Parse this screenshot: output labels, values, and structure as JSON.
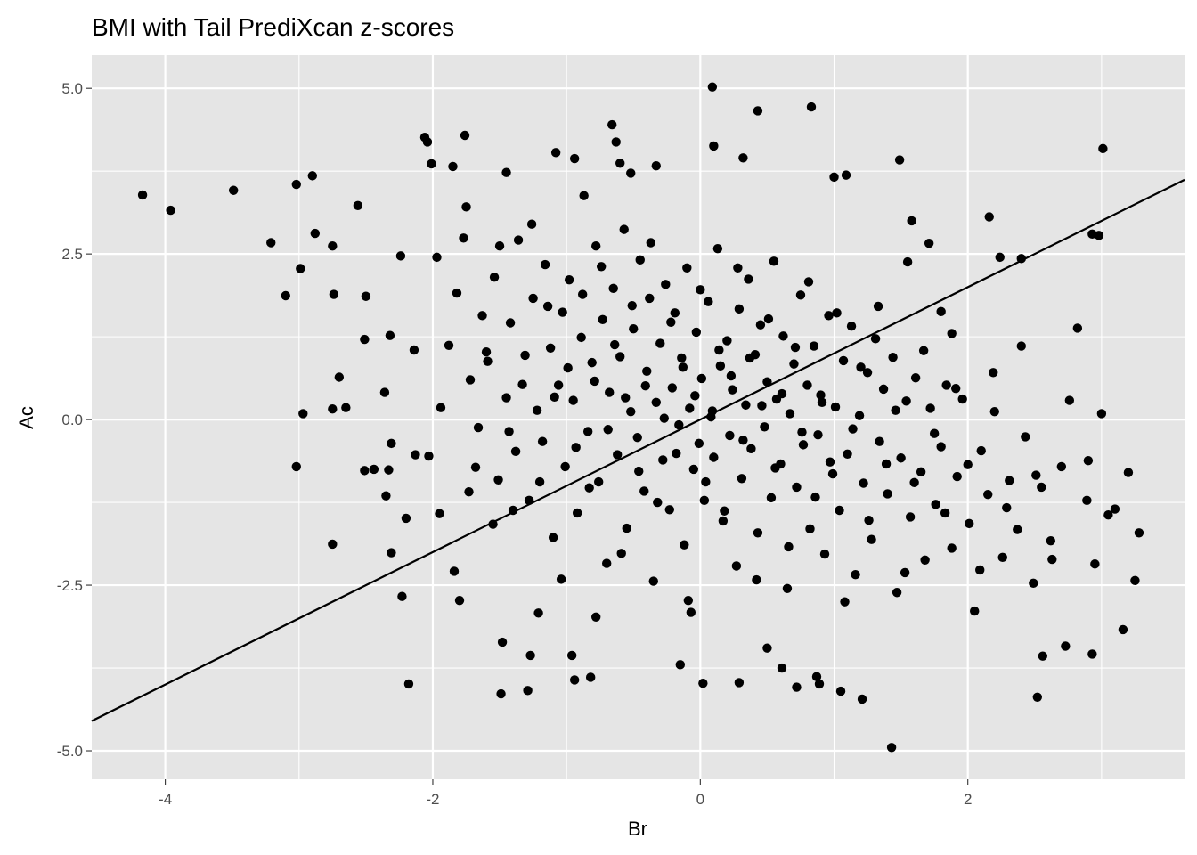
{
  "chart_data": {
    "type": "scatter",
    "title": "BMI with Tail PrediXcan z-scores",
    "xlabel": "Br",
    "ylabel": "Ac",
    "xlim": [
      -4.55,
      3.62
    ],
    "ylim": [
      -5.43,
      5.5
    ],
    "x_ticks": [
      -4,
      -2,
      0,
      2
    ],
    "x_tick_labels": [
      "-4",
      "-2",
      "0",
      "2"
    ],
    "y_ticks": [
      -5,
      -2.5,
      0,
      2.5,
      5
    ],
    "y_tick_labels": [
      "-5.0",
      "-2.5",
      "0.0",
      "2.5",
      "5.0"
    ],
    "grid": true,
    "panel_background": "#e5e5e5",
    "grid_color": "#ffffff",
    "point_color": "#000000",
    "line_color": "#000000",
    "reference_line": {
      "slope": 1,
      "intercept": 0
    },
    "points": [
      [
        -4.17,
        3.39
      ],
      [
        -3.96,
        3.16
      ],
      [
        -3.49,
        3.46
      ],
      [
        -3.21,
        2.67
      ],
      [
        -3.1,
        1.87
      ],
      [
        -3.02,
        3.55
      ],
      [
        -2.99,
        2.28
      ],
      [
        -2.9,
        3.68
      ],
      [
        -2.88,
        2.81
      ],
      [
        -2.97,
        0.09
      ],
      [
        -3.02,
        -0.71
      ],
      [
        -2.75,
        2.62
      ],
      [
        -2.74,
        1.89
      ],
      [
        -2.7,
        0.64
      ],
      [
        -2.75,
        0.16
      ],
      [
        -2.65,
        0.18
      ],
      [
        -2.75,
        -1.88
      ],
      [
        -2.56,
        3.23
      ],
      [
        -2.5,
        1.86
      ],
      [
        -2.51,
        1.21
      ],
      [
        -2.51,
        -0.77
      ],
      [
        -2.36,
        0.41
      ],
      [
        -2.32,
        1.27
      ],
      [
        -2.31,
        -0.36
      ],
      [
        -2.35,
        -1.15
      ],
      [
        -2.33,
        -0.76
      ],
      [
        -2.31,
        -2.01
      ],
      [
        -2.24,
        2.47
      ],
      [
        -2.23,
        -2.67
      ],
      [
        -2.18,
        -3.99
      ],
      [
        -2.14,
        1.05
      ],
      [
        -2.13,
        -0.53
      ],
      [
        -2.06,
        4.26
      ],
      [
        -2.04,
        4.19
      ],
      [
        -2.01,
        3.86
      ],
      [
        -1.95,
        -1.42
      ],
      [
        -1.85,
        3.82
      ],
      [
        -1.84,
        -2.29
      ],
      [
        -1.8,
        -2.73
      ],
      [
        -1.76,
        4.29
      ],
      [
        -1.75,
        3.21
      ],
      [
        -1.68,
        -0.72
      ],
      [
        -1.63,
        1.57
      ],
      [
        -1.55,
        -1.58
      ],
      [
        -1.48,
        -3.36
      ],
      [
        -1.49,
        -4.14
      ],
      [
        -1.45,
        3.73
      ],
      [
        -1.4,
        -1.37
      ],
      [
        -1.29,
        -4.09
      ],
      [
        -1.27,
        -3.56
      ],
      [
        -1.21,
        -2.92
      ],
      [
        -1.08,
        4.03
      ],
      [
        -0.94,
        3.94
      ],
      [
        -0.96,
        -3.56
      ],
      [
        -0.94,
        -3.93
      ],
      [
        -0.82,
        -3.89
      ],
      [
        -0.78,
        -2.98
      ],
      [
        -0.66,
        4.45
      ],
      [
        -0.63,
        4.19
      ],
      [
        -0.6,
        3.87
      ],
      [
        -0.52,
        3.72
      ],
      [
        -0.33,
        3.83
      ],
      [
        -0.15,
        -3.7
      ],
      [
        -0.07,
        -2.91
      ],
      [
        0.02,
        -3.98
      ],
      [
        0.09,
        5.02
      ],
      [
        0.1,
        4.13
      ],
      [
        0.32,
        3.95
      ],
      [
        0.43,
        4.66
      ],
      [
        0.29,
        -3.97
      ],
      [
        0.5,
        -3.45
      ],
      [
        0.61,
        -3.75
      ],
      [
        0.72,
        -4.04
      ],
      [
        0.83,
        4.72
      ],
      [
        0.87,
        -3.88
      ],
      [
        0.89,
        -3.99
      ],
      [
        1.0,
        3.66
      ],
      [
        1.05,
        -4.1
      ],
      [
        1.09,
        3.69
      ],
      [
        1.21,
        -4.22
      ],
      [
        1.43,
        -4.95
      ],
      [
        1.49,
        3.92
      ],
      [
        1.55,
        2.38
      ],
      [
        1.58,
        3.0
      ],
      [
        1.71,
        2.66
      ],
      [
        1.8,
        1.63
      ],
      [
        1.88,
        1.3
      ],
      [
        2.16,
        3.06
      ],
      [
        2.24,
        2.45
      ],
      [
        2.4,
        2.43
      ],
      [
        2.52,
        -4.19
      ],
      [
        2.56,
        -3.57
      ],
      [
        2.73,
        -3.42
      ],
      [
        2.82,
        1.38
      ],
      [
        2.93,
        2.8
      ],
      [
        2.98,
        2.78
      ],
      [
        3.01,
        4.09
      ],
      [
        3.0,
        0.09
      ],
      [
        2.9,
        -0.62
      ],
      [
        2.93,
        -3.54
      ],
      [
        2.95,
        -2.18
      ],
      [
        3.05,
        -1.44
      ],
      [
        3.1,
        -1.35
      ],
      [
        3.2,
        -0.8
      ],
      [
        3.16,
        -3.17
      ],
      [
        3.25,
        -2.43
      ],
      [
        3.28,
        -1.71
      ],
      [
        -2.44,
        -0.75
      ],
      [
        -2.2,
        -1.49
      ],
      [
        -2.03,
        -0.55
      ],
      [
        -1.94,
        0.18
      ],
      [
        -1.88,
        1.12
      ],
      [
        -1.82,
        1.91
      ],
      [
        -1.77,
        2.74
      ],
      [
        -1.72,
        0.6
      ],
      [
        -1.66,
        -0.12
      ],
      [
        -1.59,
        0.88
      ],
      [
        -1.54,
        2.15
      ],
      [
        -1.51,
        -0.91
      ],
      [
        -1.45,
        0.33
      ],
      [
        -1.42,
        1.46
      ],
      [
        -1.38,
        -0.48
      ],
      [
        -1.36,
        2.71
      ],
      [
        -1.31,
        0.97
      ],
      [
        -1.28,
        -1.22
      ],
      [
        -1.25,
        1.83
      ],
      [
        -1.22,
        0.14
      ],
      [
        -1.18,
        -0.33
      ],
      [
        -1.16,
        2.34
      ],
      [
        -1.12,
        1.08
      ],
      [
        -1.1,
        -1.78
      ],
      [
        -1.06,
        0.52
      ],
      [
        -1.03,
        1.62
      ],
      [
        -1.01,
        -0.71
      ],
      [
        -0.98,
        2.11
      ],
      [
        -0.95,
        0.29
      ],
      [
        -0.92,
        -1.41
      ],
      [
        -0.89,
        1.24
      ],
      [
        -0.87,
        3.38
      ],
      [
        -0.84,
        -0.18
      ],
      [
        -0.81,
        0.86
      ],
      [
        -0.78,
        2.62
      ],
      [
        -0.76,
        -0.94
      ],
      [
        -0.73,
        1.51
      ],
      [
        -0.7,
        -2.17
      ],
      [
        -0.68,
        0.41
      ],
      [
        -0.65,
        1.98
      ],
      [
        -0.62,
        -0.53
      ],
      [
        -0.6,
        0.95
      ],
      [
        -0.57,
        2.87
      ],
      [
        -0.55,
        -1.64
      ],
      [
        -0.52,
        0.12
      ],
      [
        -0.5,
        1.37
      ],
      [
        -0.47,
        -0.27
      ],
      [
        -0.45,
        2.41
      ],
      [
        -0.42,
        -1.08
      ],
      [
        -0.4,
        0.73
      ],
      [
        -0.38,
        1.83
      ],
      [
        -0.35,
        -2.44
      ],
      [
        -0.33,
        0.26
      ],
      [
        -0.3,
        1.15
      ],
      [
        -0.28,
        -0.61
      ],
      [
        -0.26,
        2.04
      ],
      [
        -0.23,
        -1.36
      ],
      [
        -0.21,
        0.48
      ],
      [
        -0.19,
        1.61
      ],
      [
        -0.16,
        -0.08
      ],
      [
        -0.14,
        0.93
      ],
      [
        -0.12,
        -1.89
      ],
      [
        -0.1,
        2.29
      ],
      [
        -0.08,
        0.17
      ],
      [
        -0.05,
        -0.75
      ],
      [
        -0.03,
        1.32
      ],
      [
        -0.01,
        -0.36
      ],
      [
        0.01,
        0.62
      ],
      [
        0.03,
        -1.22
      ],
      [
        0.06,
        1.78
      ],
      [
        0.08,
        0.04
      ],
      [
        0.1,
        -0.57
      ],
      [
        0.13,
        2.58
      ],
      [
        0.15,
        0.81
      ],
      [
        0.17,
        -1.53
      ],
      [
        0.2,
        1.19
      ],
      [
        0.22,
        -0.24
      ],
      [
        0.24,
        0.45
      ],
      [
        0.27,
        -2.21
      ],
      [
        0.29,
        1.67
      ],
      [
        0.31,
        -0.89
      ],
      [
        0.34,
        0.22
      ],
      [
        0.36,
        2.12
      ],
      [
        0.38,
        -0.44
      ],
      [
        0.41,
        0.98
      ],
      [
        0.43,
        -1.71
      ],
      [
        0.45,
        1.43
      ],
      [
        0.48,
        -0.11
      ],
      [
        0.5,
        0.57
      ],
      [
        0.53,
        -1.18
      ],
      [
        0.55,
        2.39
      ],
      [
        0.57,
        0.31
      ],
      [
        0.6,
        -0.67
      ],
      [
        0.62,
        1.26
      ],
      [
        0.65,
        -2.55
      ],
      [
        0.67,
        0.09
      ],
      [
        0.7,
        0.84
      ],
      [
        0.72,
        -1.02
      ],
      [
        0.75,
        1.88
      ],
      [
        0.77,
        -0.38
      ],
      [
        0.8,
        0.52
      ],
      [
        0.82,
        -1.65
      ],
      [
        0.85,
        1.11
      ],
      [
        0.88,
        -0.23
      ],
      [
        0.9,
        0.37
      ],
      [
        0.93,
        -2.03
      ],
      [
        0.96,
        1.57
      ],
      [
        0.99,
        -0.82
      ],
      [
        1.01,
        0.19
      ],
      [
        1.04,
        -1.37
      ],
      [
        1.07,
        0.89
      ],
      [
        1.1,
        -0.52
      ],
      [
        1.13,
        1.41
      ],
      [
        1.16,
        -2.34
      ],
      [
        1.19,
        0.06
      ],
      [
        1.22,
        -0.96
      ],
      [
        1.25,
        0.71
      ],
      [
        1.28,
        -1.81
      ],
      [
        1.31,
        1.22
      ],
      [
        1.34,
        -0.33
      ],
      [
        1.37,
        0.46
      ],
      [
        1.4,
        -1.12
      ],
      [
        1.44,
        0.94
      ],
      [
        1.47,
        -2.61
      ],
      [
        1.5,
        -0.58
      ],
      [
        1.54,
        0.28
      ],
      [
        1.57,
        -1.47
      ],
      [
        1.61,
        0.63
      ],
      [
        1.65,
        -0.79
      ],
      [
        1.68,
        -2.12
      ],
      [
        1.72,
        0.17
      ],
      [
        1.76,
        -1.28
      ],
      [
        1.8,
        -0.41
      ],
      [
        1.84,
        0.52
      ],
      [
        1.88,
        -1.94
      ],
      [
        1.92,
        -0.86
      ],
      [
        1.96,
        0.31
      ],
      [
        2.01,
        -1.57
      ],
      [
        2.05,
        -2.89
      ],
      [
        2.1,
        -0.47
      ],
      [
        2.15,
        -1.13
      ],
      [
        2.2,
        0.12
      ],
      [
        2.26,
        -2.08
      ],
      [
        2.31,
        -0.92
      ],
      [
        2.37,
        -1.66
      ],
      [
        2.43,
        -0.26
      ],
      [
        2.49,
        -2.47
      ],
      [
        2.55,
        -1.02
      ],
      [
        2.62,
        -1.83
      ],
      [
        2.7,
        -0.71
      ],
      [
        -1.97,
        2.45
      ],
      [
        -1.73,
        -1.09
      ],
      [
        -1.6,
        1.02
      ],
      [
        -1.5,
        2.62
      ],
      [
        -1.43,
        -0.18
      ],
      [
        -1.33,
        0.53
      ],
      [
        -1.26,
        2.95
      ],
      [
        -1.2,
        -0.94
      ],
      [
        -1.14,
        1.71
      ],
      [
        -1.09,
        0.34
      ],
      [
        -1.04,
        -2.41
      ],
      [
        -0.99,
        0.78
      ],
      [
        -0.93,
        -0.42
      ],
      [
        -0.88,
        1.89
      ],
      [
        -0.83,
        -1.03
      ],
      [
        -0.79,
        0.58
      ],
      [
        -0.74,
        2.31
      ],
      [
        -0.69,
        -0.15
      ],
      [
        -0.64,
        1.13
      ],
      [
        -0.59,
        -2.02
      ],
      [
        -0.56,
        0.33
      ],
      [
        -0.51,
        1.72
      ],
      [
        -0.46,
        -0.78
      ],
      [
        -0.41,
        0.51
      ],
      [
        -0.37,
        2.67
      ],
      [
        -0.32,
        -1.25
      ],
      [
        -0.27,
        0.02
      ],
      [
        -0.22,
        1.47
      ],
      [
        -0.18,
        -0.51
      ],
      [
        -0.13,
        0.79
      ],
      [
        -0.09,
        -2.73
      ],
      [
        -0.04,
        0.36
      ],
      [
        0.0,
        1.96
      ],
      [
        0.04,
        -0.94
      ],
      [
        0.09,
        0.13
      ],
      [
        0.14,
        1.05
      ],
      [
        0.18,
        -1.38
      ],
      [
        0.23,
        0.66
      ],
      [
        0.28,
        2.29
      ],
      [
        0.32,
        -0.31
      ],
      [
        0.37,
        0.93
      ],
      [
        0.42,
        -2.42
      ],
      [
        0.46,
        0.21
      ],
      [
        0.51,
        1.52
      ],
      [
        0.56,
        -0.73
      ],
      [
        0.61,
        0.39
      ],
      [
        0.66,
        -1.92
      ],
      [
        0.71,
        1.09
      ],
      [
        0.76,
        -0.19
      ],
      [
        0.81,
        2.08
      ],
      [
        0.86,
        -1.17
      ],
      [
        0.91,
        0.26
      ],
      [
        0.97,
        -0.64
      ],
      [
        1.02,
        1.61
      ],
      [
        1.08,
        -2.75
      ],
      [
        1.14,
        -0.14
      ],
      [
        1.2,
        0.79
      ],
      [
        1.26,
        -1.52
      ],
      [
        1.33,
        1.71
      ],
      [
        1.39,
        -0.67
      ],
      [
        1.46,
        0.14
      ],
      [
        1.53,
        -2.31
      ],
      [
        1.6,
        -0.95
      ],
      [
        1.67,
        1.04
      ],
      [
        1.75,
        -0.21
      ],
      [
        1.83,
        -1.41
      ],
      [
        1.91,
        0.47
      ],
      [
        2.0,
        -0.68
      ],
      [
        2.09,
        -2.27
      ],
      [
        2.19,
        0.71
      ],
      [
        2.29,
        -1.33
      ],
      [
        2.4,
        1.11
      ],
      [
        2.51,
        -0.84
      ],
      [
        2.63,
        -2.11
      ],
      [
        2.76,
        0.29
      ],
      [
        2.89,
        -1.22
      ]
    ]
  }
}
